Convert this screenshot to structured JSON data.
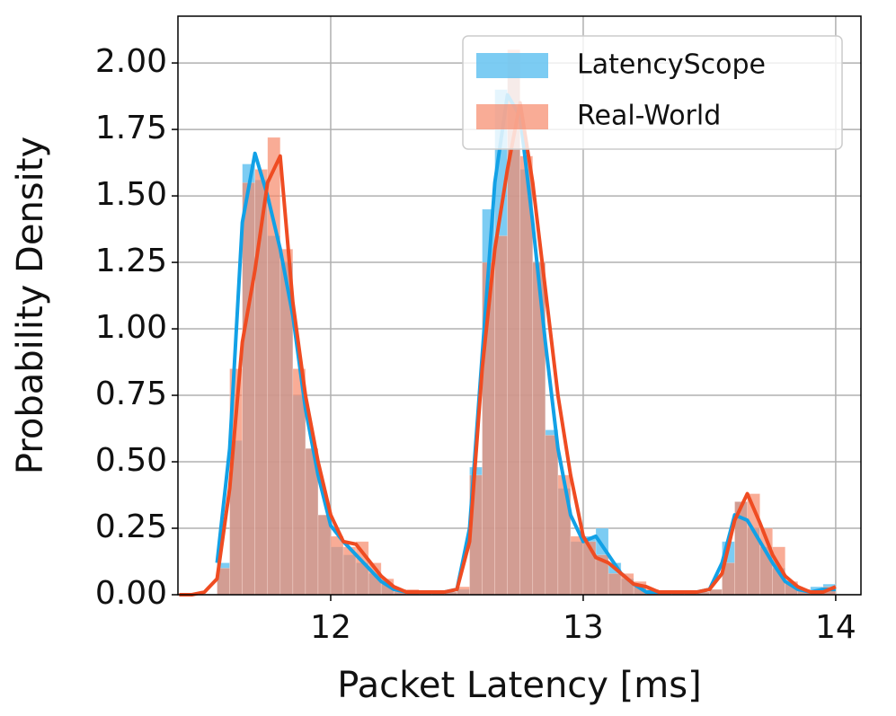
{
  "chart_data": {
    "type": "histogram",
    "xlabel": "Packet Latency [ms]",
    "ylabel": "Probability Density",
    "bins": [
      11.55,
      11.6,
      11.65,
      11.7,
      11.75,
      11.8,
      11.85,
      11.9,
      11.95,
      12.0,
      12.05,
      12.1,
      12.15,
      12.2,
      12.25,
      12.3,
      12.35,
      12.4,
      12.45,
      12.5,
      12.55,
      12.6,
      12.65,
      12.7,
      12.75,
      12.8,
      12.85,
      12.9,
      12.95,
      13.0,
      13.05,
      13.1,
      13.15,
      13.2,
      13.25,
      13.3,
      13.35,
      13.4,
      13.45,
      13.5,
      13.55,
      13.6,
      13.65,
      13.7,
      13.75,
      13.8,
      13.85,
      13.9,
      13.95,
      14.0
    ],
    "x": [
      11.4,
      11.45,
      11.5,
      11.55,
      11.6,
      11.65,
      11.7,
      11.75,
      11.8,
      11.85,
      11.9,
      11.95,
      12.0,
      12.05,
      12.1,
      12.15,
      12.2,
      12.25,
      12.3,
      12.35,
      12.4,
      12.45,
      12.5,
      12.55,
      12.6,
      12.65,
      12.7,
      12.75,
      12.8,
      12.85,
      12.9,
      12.95,
      13.0,
      13.05,
      13.1,
      13.15,
      13.2,
      13.25,
      13.3,
      13.35,
      13.4,
      13.45,
      13.5,
      13.55,
      13.6,
      13.65,
      13.7,
      13.75,
      13.8,
      13.85,
      13.9,
      13.95,
      14.0
    ],
    "series": [
      {
        "name": "LatencyScope",
        "color": "#5bbff0",
        "line_color": "#12a1e6",
        "opacity": 0.8,
        "values": [
          0.12,
          0.58,
          1.62,
          1.56,
          1.35,
          1.25,
          0.75,
          0.55,
          0.3,
          0.18,
          0.15,
          0.12,
          0.08,
          0.04,
          0.01,
          0.01,
          0.01,
          0.01,
          0.01,
          0.02,
          0.48,
          1.45,
          1.9,
          1.95,
          1.6,
          1.25,
          0.62,
          0.4,
          0.2,
          0.22,
          0.25,
          0.12,
          0.06,
          0.03,
          0.01,
          0.01,
          0.01,
          0.01,
          0.01,
          0.02,
          0.2,
          0.35,
          0.25,
          0.18,
          0.1,
          0.04,
          0.02,
          0.03,
          0.04
        ],
        "kde": [
          null,
          null,
          null,
          0.12,
          0.55,
          1.4,
          1.66,
          1.5,
          1.3,
          1.05,
          0.7,
          0.45,
          0.26,
          0.2,
          0.15,
          0.1,
          0.05,
          0.02,
          0.01,
          0.01,
          0.01,
          0.01,
          0.02,
          0.25,
          0.9,
          1.55,
          1.88,
          1.8,
          1.4,
          0.95,
          0.55,
          0.3,
          0.2,
          0.22,
          0.15,
          0.08,
          0.04,
          0.01,
          0.01,
          0.01,
          0.01,
          0.01,
          0.02,
          0.12,
          0.3,
          0.28,
          0.2,
          0.12,
          0.05,
          0.02,
          0.01,
          0.02,
          0.02
        ]
      },
      {
        "name": "Real-World",
        "color": "#f7896a",
        "line_color": "#ef4c22",
        "opacity": 0.7,
        "values": [
          0.1,
          0.85,
          1.55,
          1.6,
          1.72,
          1.3,
          0.85,
          0.55,
          0.3,
          0.22,
          0.18,
          0.2,
          0.12,
          0.06,
          0.02,
          0.02,
          0.01,
          0.01,
          0.01,
          0.03,
          0.45,
          1.25,
          1.35,
          2.05,
          1.65,
          1.25,
          0.6,
          0.45,
          0.22,
          0.2,
          0.15,
          0.08,
          0.08,
          0.05,
          0.02,
          0.01,
          0.01,
          0.01,
          0.01,
          0.02,
          0.12,
          0.35,
          0.38,
          0.25,
          0.18,
          0.05,
          0.02,
          0.01,
          0.03
        ],
        "kde": [
          0,
          0,
          0.01,
          0.06,
          0.4,
          0.95,
          1.22,
          1.55,
          1.65,
          1.1,
          0.75,
          0.5,
          0.3,
          0.2,
          0.19,
          0.13,
          0.07,
          0.03,
          0.01,
          0.01,
          0.01,
          0.01,
          0.02,
          0.2,
          0.85,
          1.3,
          1.6,
          1.85,
          1.55,
          1.15,
          0.75,
          0.45,
          0.22,
          0.14,
          0.12,
          0.08,
          0.04,
          0.03,
          0.01,
          0.01,
          0.01,
          0.01,
          0.02,
          0.08,
          0.28,
          0.38,
          0.27,
          0.15,
          0.07,
          0.03,
          0.01,
          0.01,
          0.03
        ]
      }
    ],
    "xlim": [
      11.395,
      14.1
    ],
    "ylim": [
      0,
      2.176
    ],
    "xticks": [
      12,
      13,
      14
    ],
    "yticks": [
      {
        "value": 0,
        "label": "0.00"
      },
      {
        "value": 0.25,
        "label": "0.25"
      },
      {
        "value": 0.5,
        "label": "0.50"
      },
      {
        "value": 0.75,
        "label": "0.75"
      },
      {
        "value": 1,
        "label": "1.00"
      },
      {
        "value": 1.25,
        "label": "1.25"
      },
      {
        "value": 1.5,
        "label": "1.50"
      },
      {
        "value": 1.75,
        "label": "1.75"
      },
      {
        "value": 2,
        "label": "2.00"
      }
    ],
    "grid": true,
    "legend": "upper right"
  }
}
